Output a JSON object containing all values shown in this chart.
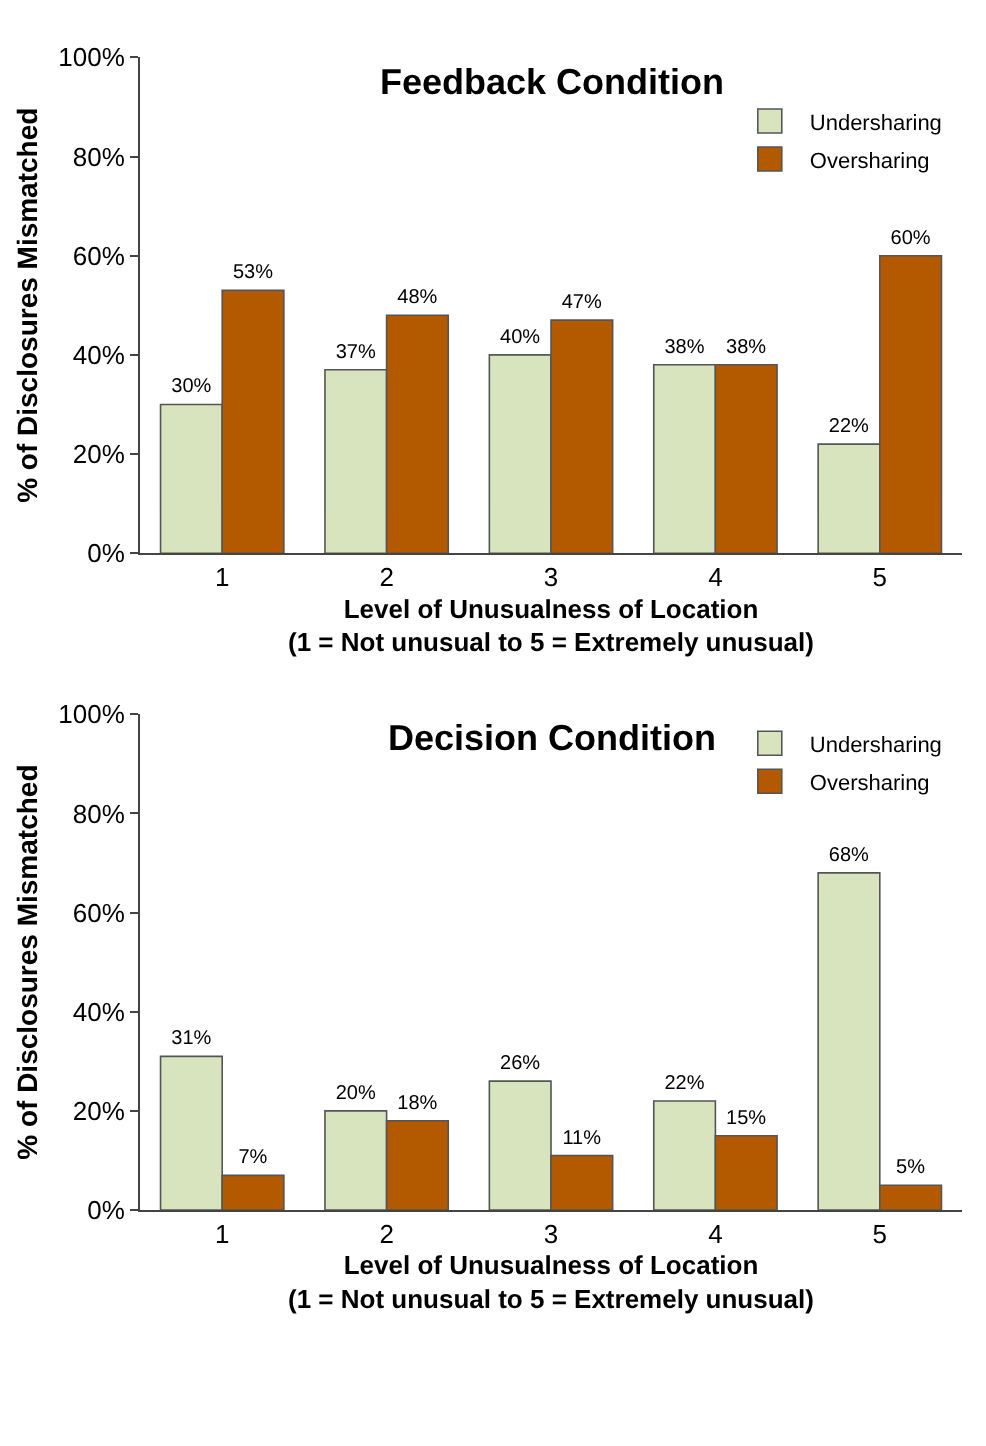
{
  "chart_data": [
    {
      "type": "bar",
      "title": "Feedback Condition",
      "xlabel": "Level of Unusualness of Location\n(1 = Not unusual to 5 = Extremely unusual)",
      "ylabel": "% of Disclosures Mismatched",
      "categories": [
        "1",
        "2",
        "3",
        "4",
        "5"
      ],
      "series": [
        {
          "name": "Undersharing",
          "color": "#d7e4bd",
          "values": [
            30,
            37,
            40,
            38,
            22
          ],
          "value_labels": [
            "30%",
            "37%",
            "40%",
            "38%",
            "22%"
          ]
        },
        {
          "name": "Oversharing",
          "color": "#b35900",
          "values": [
            53,
            48,
            47,
            38,
            60
          ],
          "value_labels": [
            "53%",
            "48%",
            "47%",
            "38%",
            "60%"
          ]
        }
      ],
      "ylim": [
        0,
        100
      ],
      "yticks": [
        {
          "value": 0,
          "label": "0%"
        },
        {
          "value": 20,
          "label": "20%"
        },
        {
          "value": 40,
          "label": "40%"
        },
        {
          "value": 60,
          "label": "60%"
        },
        {
          "value": 80,
          "label": "80%"
        },
        {
          "value": 100,
          "label": "100%"
        }
      ],
      "legend": "top right"
    },
    {
      "type": "bar",
      "title": "Decision Condition",
      "xlabel": "Level of Unusualness of Location\n(1 = Not unusual to 5 = Extremely unusual)",
      "ylabel": "% of Disclosures Mismatched",
      "categories": [
        "1",
        "2",
        "3",
        "4",
        "5"
      ],
      "series": [
        {
          "name": "Undersharing",
          "color": "#d7e4bd",
          "values": [
            31,
            20,
            26,
            22,
            68
          ],
          "value_labels": [
            "31%",
            "20%",
            "26%",
            "22%",
            "68%"
          ]
        },
        {
          "name": "Oversharing",
          "color": "#b35900",
          "values": [
            7,
            18,
            11,
            15,
            5
          ],
          "value_labels": [
            "7%",
            "18%",
            "11%",
            "15%",
            "5%"
          ]
        }
      ],
      "ylim": [
        0,
        100
      ],
      "yticks": [
        {
          "value": 0,
          "label": "0%"
        },
        {
          "value": 20,
          "label": "20%"
        },
        {
          "value": 40,
          "label": "40%"
        },
        {
          "value": 60,
          "label": "60%"
        },
        {
          "value": 80,
          "label": "80%"
        },
        {
          "value": 100,
          "label": "100%"
        }
      ],
      "legend": "top right"
    }
  ]
}
